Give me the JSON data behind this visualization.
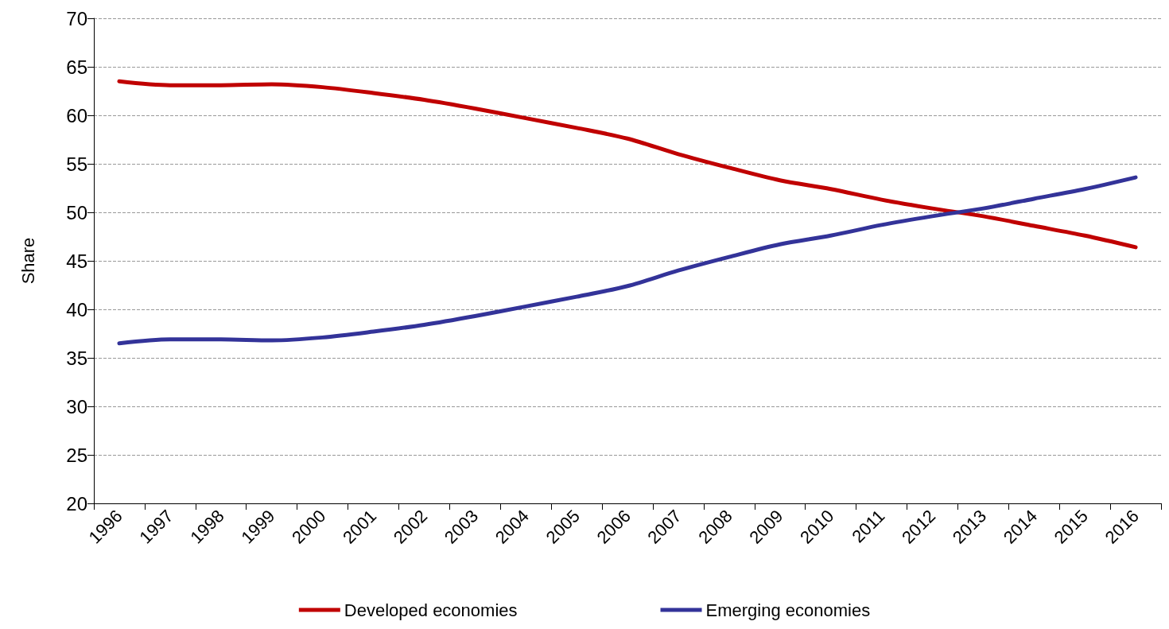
{
  "chart_data": {
    "type": "line",
    "ylabel": "Share",
    "categories": [
      "1996",
      "1997",
      "1998",
      "1999",
      "2000",
      "2001",
      "2002",
      "2003",
      "2004",
      "2005",
      "2006",
      "2007",
      "2008",
      "2009",
      "2010",
      "2011",
      "2012",
      "2013",
      "2014",
      "2015",
      "2016"
    ],
    "series": [
      {
        "name": "Developed economies",
        "color": "#c00000",
        "values": [
          63.5,
          63.1,
          63.1,
          63.2,
          62.9,
          62.3,
          61.6,
          60.7,
          59.7,
          58.7,
          57.6,
          56.0,
          54.6,
          53.3,
          52.4,
          51.3,
          50.4,
          49.6,
          48.6,
          47.6,
          46.4
        ]
      },
      {
        "name": "Emerging economies",
        "color": "#333399",
        "values": [
          36.5,
          36.9,
          36.9,
          36.8,
          37.1,
          37.7,
          38.4,
          39.3,
          40.3,
          41.3,
          42.4,
          44.0,
          45.4,
          46.7,
          47.6,
          48.7,
          49.6,
          50.4,
          51.4,
          52.4,
          53.6
        ]
      }
    ],
    "ylim": [
      20,
      70
    ],
    "yticks": [
      20,
      25,
      30,
      35,
      40,
      45,
      50,
      55,
      60,
      65,
      70
    ],
    "grid": "y",
    "legend": "bottom",
    "marker": "none",
    "line_style": "solid"
  }
}
